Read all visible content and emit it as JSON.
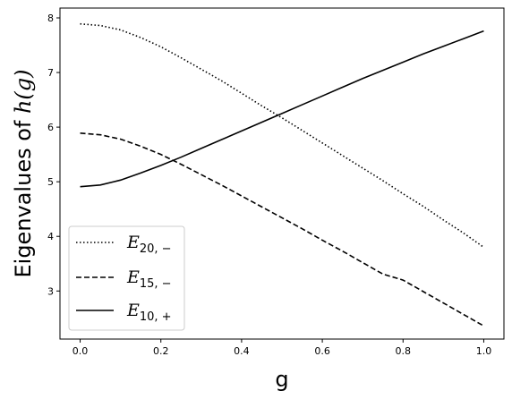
{
  "chart_data": {
    "type": "line",
    "xlabel": "g",
    "ylabel_prefix": "Eigenvalues of ",
    "ylabel_math": "h(g)",
    "xlim": [
      -0.05,
      1.05
    ],
    "ylim": [
      2.12,
      8.18
    ],
    "xticks": [
      0.0,
      0.2,
      0.4,
      0.6,
      0.8,
      1.0
    ],
    "xtick_labels": [
      "0.0",
      "0.2",
      "0.4",
      "0.6",
      "0.8",
      "1.0"
    ],
    "yticks": [
      3,
      4,
      5,
      6,
      7,
      8
    ],
    "ytick_labels": [
      "3",
      "4",
      "5",
      "6",
      "7",
      "8"
    ],
    "legend_position": "lower-left",
    "series": [
      {
        "symbol": "E",
        "subscript": "20, −",
        "style": "dotted",
        "color": "#000000",
        "x": [
          0.0,
          0.05,
          0.1,
          0.15,
          0.2,
          0.25,
          0.3,
          0.35,
          0.4,
          0.45,
          0.5,
          0.55,
          0.6,
          0.65,
          0.7,
          0.75,
          0.8,
          0.85,
          0.9,
          0.95,
          1.0
        ],
        "y": [
          7.89,
          7.86,
          7.78,
          7.64,
          7.47,
          7.27,
          7.06,
          6.85,
          6.62,
          6.39,
          6.17,
          5.94,
          5.71,
          5.48,
          5.25,
          5.02,
          4.78,
          4.55,
          4.3,
          4.06,
          3.8
        ]
      },
      {
        "symbol": "E",
        "subscript": "15, −",
        "style": "dashed",
        "color": "#000000",
        "x": [
          0.0,
          0.05,
          0.1,
          0.15,
          0.2,
          0.25,
          0.3,
          0.35,
          0.4,
          0.45,
          0.5,
          0.55,
          0.6,
          0.65,
          0.7,
          0.75,
          0.8,
          0.85,
          0.9,
          0.95,
          1.0
        ],
        "y": [
          5.89,
          5.86,
          5.78,
          5.65,
          5.5,
          5.32,
          5.13,
          4.94,
          4.74,
          4.54,
          4.34,
          4.14,
          3.93,
          3.73,
          3.52,
          3.31,
          3.2,
          2.99,
          2.78,
          2.57,
          2.36
        ]
      },
      {
        "symbol": "E",
        "subscript": "10, +",
        "style": "solid",
        "color": "#000000",
        "x": [
          0.0,
          0.05,
          0.1,
          0.15,
          0.2,
          0.25,
          0.3,
          0.35,
          0.4,
          0.45,
          0.5,
          0.55,
          0.6,
          0.65,
          0.7,
          0.75,
          0.8,
          0.85,
          0.9,
          0.95,
          1.0
        ],
        "y": [
          4.91,
          4.94,
          5.03,
          5.16,
          5.3,
          5.45,
          5.61,
          5.77,
          5.93,
          6.09,
          6.25,
          6.41,
          6.57,
          6.73,
          6.89,
          7.04,
          7.19,
          7.34,
          7.48,
          7.62,
          7.76
        ]
      }
    ]
  }
}
